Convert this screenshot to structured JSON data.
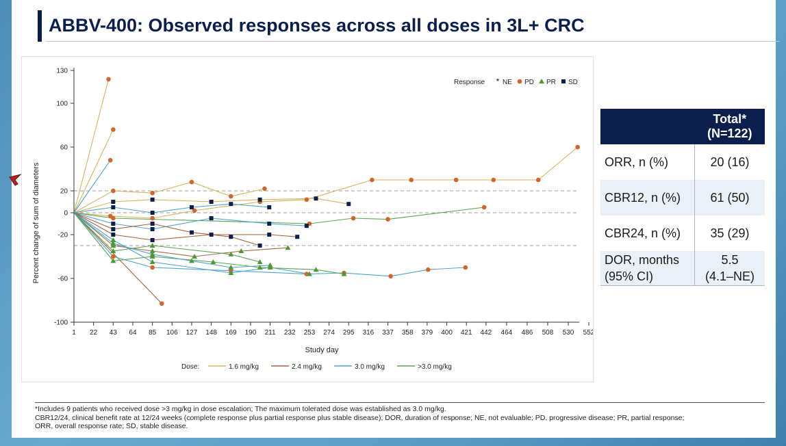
{
  "title": "ABBV-400: Observed responses across all doses in 3L+ CRC",
  "chart_data": {
    "type": "line",
    "title": "",
    "xlabel": "Study day",
    "ylabel": "Percent change of sum of diameters",
    "xlim": [
      1,
      552
    ],
    "ylim": [
      -100,
      130
    ],
    "x_ticks": [
      1,
      22,
      43,
      64,
      85,
      106,
      127,
      148,
      169,
      190,
      211,
      232,
      253,
      274,
      295,
      316,
      337,
      358,
      379,
      400,
      421,
      442,
      464,
      486,
      508,
      530,
      552
    ],
    "y_ticks": [
      130,
      100,
      60,
      20,
      0,
      -20,
      -60,
      -100
    ],
    "reference_lines": [
      20,
      0,
      -30
    ],
    "legend_response": {
      "title": "Response",
      "entries": [
        {
          "label": "NE",
          "marker": "star"
        },
        {
          "label": "PD",
          "marker": "circle",
          "color": "#d1652a"
        },
        {
          "label": "PR",
          "marker": "triangle",
          "color": "#4a9a36"
        },
        {
          "label": "SD",
          "marker": "square",
          "color": "#0b1f4f"
        }
      ]
    },
    "legend_dose": {
      "title": "Dose:",
      "entries": [
        {
          "label": "1.6 mg/kg",
          "color": "#d4b45a"
        },
        {
          "label": "2.4 mg/kg",
          "color": "#a8623a"
        },
        {
          "label": "3.0 mg/kg",
          "color": "#4aa3d1"
        },
        {
          "label": ">3.0 mg/kg",
          "color": "#5aa352"
        }
      ]
    },
    "series": [
      {
        "dose": "1.6 mg/kg",
        "points": [
          [
            1,
            0
          ],
          [
            38,
            122
          ]
        ],
        "end": "PD"
      },
      {
        "dose": "1.6 mg/kg",
        "points": [
          [
            1,
            0
          ],
          [
            43,
            76
          ]
        ],
        "end": "PD"
      },
      {
        "dose": "3.0 mg/kg",
        "points": [
          [
            1,
            0
          ],
          [
            40,
            48
          ]
        ],
        "end": "PD"
      },
      {
        "dose": "2.4 mg/kg",
        "points": [
          [
            1,
            0
          ],
          [
            95,
            -83
          ]
        ],
        "end": "PD"
      },
      {
        "dose": "1.6 mg/kg",
        "points": [
          [
            1,
            0
          ],
          [
            40,
            -3
          ],
          [
            85,
            -5
          ],
          [
            130,
            2
          ],
          [
            200,
            10
          ],
          [
            250,
            12
          ],
          [
            320,
            30
          ],
          [
            362,
            30
          ],
          [
            410,
            30
          ],
          [
            450,
            30
          ],
          [
            498,
            30
          ],
          [
            540,
            60
          ]
        ],
        "end": "PD"
      },
      {
        "dose": ">3.0 mg/kg",
        "points": [
          [
            1,
            0
          ],
          [
            43,
            -5
          ],
          [
            253,
            -10
          ],
          [
            300,
            -5
          ],
          [
            337,
            -6
          ],
          [
            440,
            5
          ]
        ],
        "end": "PD"
      },
      {
        "dose": "3.0 mg/kg",
        "points": [
          [
            1,
            0
          ],
          [
            43,
            -40
          ],
          [
            85,
            -50
          ],
          [
            169,
            -53
          ],
          [
            250,
            -56
          ],
          [
            290,
            -55
          ],
          [
            340,
            -58
          ],
          [
            380,
            -52
          ],
          [
            420,
            -50
          ]
        ],
        "end": "PD"
      },
      {
        "dose": "3.0 mg/kg",
        "points": [
          [
            1,
            0
          ],
          [
            43,
            -25
          ],
          [
            85,
            -45
          ],
          [
            169,
            -55
          ],
          [
            211,
            -50
          ],
          [
            253,
            -56
          ]
        ],
        "end": "PR"
      },
      {
        "dose": ">3.0 mg/kg",
        "points": [
          [
            1,
            0
          ],
          [
            43,
            -44
          ],
          [
            85,
            -40
          ],
          [
            150,
            -45
          ],
          [
            200,
            -50
          ],
          [
            260,
            -52
          ],
          [
            290,
            -56
          ]
        ],
        "end": "PR"
      },
      {
        "dose": "2.4 mg/kg",
        "points": [
          [
            1,
            0
          ],
          [
            43,
            -30
          ],
          [
            85,
            -35
          ],
          [
            130,
            -40
          ],
          [
            180,
            -35
          ],
          [
            230,
            -32
          ]
        ],
        "end": "PR"
      },
      {
        "dose": "1.6 mg/kg",
        "points": [
          [
            1,
            0
          ],
          [
            43,
            10
          ],
          [
            85,
            12
          ],
          [
            148,
            10
          ],
          [
            200,
            12
          ],
          [
            260,
            13
          ],
          [
            295,
            8
          ]
        ],
        "end": "SD"
      },
      {
        "dose": "3.0 mg/kg",
        "points": [
          [
            1,
            0
          ],
          [
            43,
            -10
          ],
          [
            85,
            -15
          ],
          [
            148,
            -5
          ],
          [
            210,
            -10
          ],
          [
            250,
            -12
          ]
        ],
        "end": "SD"
      },
      {
        "dose": "2.4 mg/kg",
        "points": [
          [
            1,
            0
          ],
          [
            43,
            -20
          ],
          [
            85,
            -25
          ],
          [
            148,
            -20
          ],
          [
            210,
            -20
          ],
          [
            240,
            -22
          ]
        ],
        "end": "SD"
      },
      {
        "dose": ">3.0 mg/kg",
        "points": [
          [
            1,
            0
          ],
          [
            43,
            -35
          ],
          [
            85,
            -30
          ],
          [
            169,
            -38
          ],
          [
            200,
            -45
          ]
        ],
        "end": "PR"
      },
      {
        "dose": "3.0 mg/kg",
        "points": [
          [
            1,
            0
          ],
          [
            43,
            5
          ],
          [
            85,
            0
          ],
          [
            127,
            5
          ],
          [
            169,
            8
          ],
          [
            210,
            5
          ]
        ],
        "end": "SD"
      },
      {
        "dose": "2.4 mg/kg",
        "points": [
          [
            1,
            0
          ],
          [
            43,
            -15
          ],
          [
            85,
            -10
          ],
          [
            127,
            -18
          ],
          [
            169,
            -22
          ],
          [
            200,
            -30
          ]
        ],
        "end": "SD"
      },
      {
        "dose": "1.6 mg/kg",
        "points": [
          [
            1,
            0
          ],
          [
            43,
            20
          ],
          [
            85,
            18
          ],
          [
            127,
            28
          ],
          [
            169,
            15
          ],
          [
            205,
            22
          ]
        ],
        "end": "PD"
      },
      {
        "dose": "3.0 mg/kg",
        "points": [
          [
            1,
            0
          ],
          [
            43,
            -28
          ],
          [
            85,
            -38
          ],
          [
            127,
            -44
          ],
          [
            169,
            -50
          ],
          [
            211,
            -48
          ]
        ],
        "end": "PR"
      }
    ]
  },
  "table": {
    "header_total": "Total*",
    "header_n": "(N=122)",
    "rows": [
      {
        "label": "ORR, n (%)",
        "value": "20 (16)"
      },
      {
        "label": "CBR12, n (%)",
        "value": "61 (50)"
      },
      {
        "label": "CBR24, n (%)",
        "value": "35 (29)"
      },
      {
        "label": "DOR, months",
        "label2": "(95% CI)",
        "value": "5.5",
        "value2": "(4.1–NE)"
      }
    ]
  },
  "footnotes": {
    "line1": "*Includes 9 patients who received dose >3 mg/kg in dose escalation; The maximum tolerated dose was established as 3.0 mg/kg.",
    "line2": "CBR12/24, clinical benefit rate at 12/24 weeks (complete response plus partial response plus stable disease); DOR, duration of response; NE, not evaluable; PD, progressive disease; PR, partial response;",
    "line3": "ORR, overall response rate; SD, stable disease."
  },
  "colors": {
    "navy": "#0b1f4f",
    "pd": "#d1652a",
    "pr": "#4a9a36",
    "sd": "#0b1f4f"
  }
}
